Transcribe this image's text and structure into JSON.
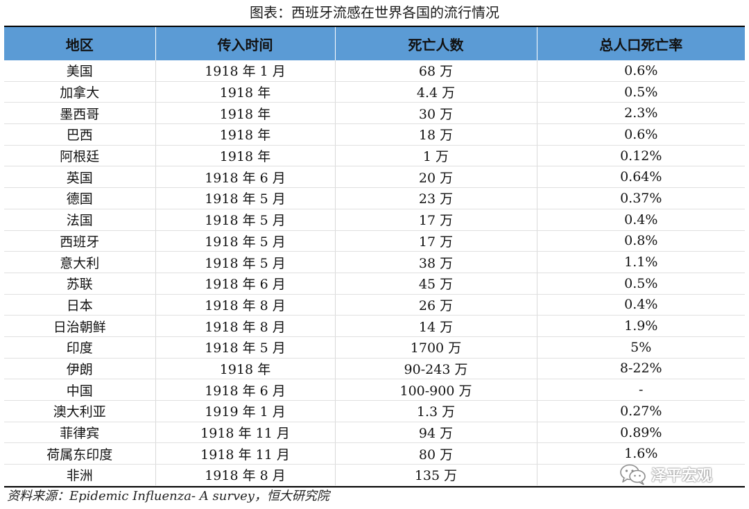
{
  "title": "图表：西班牙流感在世界各国的流行情况",
  "table": {
    "headers": [
      "地区",
      "传入时间",
      "死亡人数",
      "总人口死亡率"
    ],
    "rows": [
      [
        "美国",
        "1918 年 1 月",
        "68 万",
        "0.6%"
      ],
      [
        "加拿大",
        "1918 年",
        "4.4 万",
        "0.5%"
      ],
      [
        "墨西哥",
        "1918 年",
        "30 万",
        "2.3%"
      ],
      [
        "巴西",
        "1918 年",
        "18 万",
        "0.6%"
      ],
      [
        "阿根廷",
        "1918 年",
        "1 万",
        "0.12%"
      ],
      [
        "英国",
        "1918 年 6 月",
        "20 万",
        "0.64%"
      ],
      [
        "德国",
        "1918 年 5 月",
        "23 万",
        "0.37%"
      ],
      [
        "法国",
        "1918 年 5 月",
        "17 万",
        "0.4%"
      ],
      [
        "西班牙",
        "1918 年 5 月",
        "17 万",
        "0.8%"
      ],
      [
        "意大利",
        "1918 年 5 月",
        "38 万",
        "1.1%"
      ],
      [
        "苏联",
        "1918 年 6 月",
        "45 万",
        "0.5%"
      ],
      [
        "日本",
        "1918 年 8 月",
        "26 万",
        "0.4%"
      ],
      [
        "日治朝鲜",
        "1918 年 8 月",
        "14 万",
        "1.9%"
      ],
      [
        "印度",
        "1918 年 5 月",
        "1700 万",
        "5%"
      ],
      [
        "伊朗",
        "1918 年",
        "90-243 万",
        "8-22%"
      ],
      [
        "中国",
        "1918 年 6 月",
        "100-900 万",
        "-"
      ],
      [
        "澳大利亚",
        "1919 年 1 月",
        "1.3 万",
        "0.27%"
      ],
      [
        "菲律宾",
        "1918 年 11 月",
        "94 万",
        "0.89%"
      ],
      [
        "荷属东印度",
        "1918 年 11 月",
        "80 万",
        "1.6%"
      ],
      [
        "非洲",
        "1918 年 8 月",
        "135 万",
        ""
      ]
    ]
  },
  "source": "资料来源：Epidemic Influenza- A survey，恒大研究院",
  "watermark": {
    "text": "泽平宏观",
    "icon": "wechat-icon"
  },
  "colors": {
    "header_bg": "#5b9bd5",
    "rule": "#000000"
  }
}
